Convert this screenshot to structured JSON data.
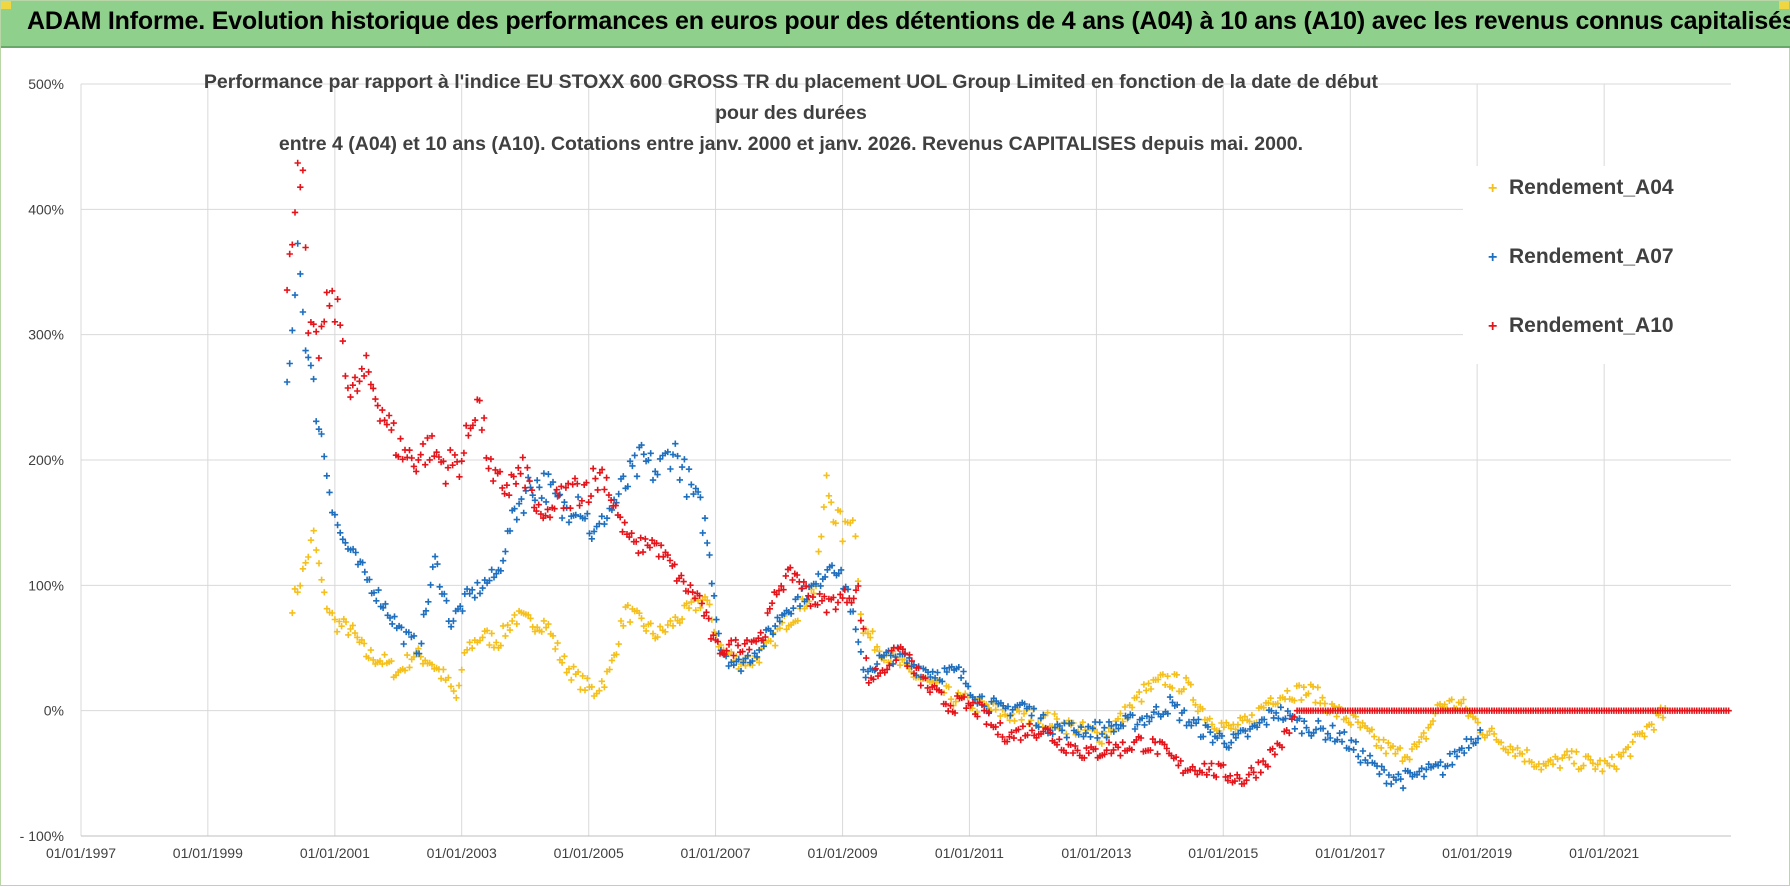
{
  "banner": {
    "title": "ADAM Informe. Evolution historique des performances en euros pour des détentions de 4 ans (A04) à 10 ans (A10) avec les revenus connus capitalisés"
  },
  "colors": {
    "banner_bg": "#8fd08c",
    "A04": "#f5c01b",
    "A07": "#1f6fbf",
    "A10": "#e5141b",
    "gridline": "#d9d9d9",
    "text": "#404040"
  },
  "chart_data": {
    "type": "scatter",
    "title_line1": "Performance par rapport à l'indice EU STOXX 600 GROSS TR  du placement UOL Group Limited en fonction de la date de début pour des durées",
    "title_line2": "entre 4 (A04) et 10 ans (A10).  Cotations entre janv. 2000 et janv. 2026. Revenus CAPITALISES depuis mai. 2000.",
    "xlabel": "",
    "ylabel": "",
    "x_axis_type": "date",
    "xlim": [
      "1997-01-01",
      "2023-01-01"
    ],
    "ylim": [
      -100,
      500
    ],
    "x_ticks": [
      "01/01/1997",
      "01/01/1999",
      "01/01/2001",
      "01/01/2003",
      "01/01/2005",
      "01/01/2007",
      "01/01/2009",
      "01/01/2011",
      "01/01/2013",
      "01/01/2015",
      "01/01/2017",
      "01/01/2019",
      "01/01/2021"
    ],
    "x_tick_dates": [
      "1997-01-01",
      "1999-01-01",
      "2001-01-01",
      "2003-01-01",
      "2005-01-01",
      "2007-01-01",
      "2009-01-01",
      "2011-01-01",
      "2013-01-01",
      "2015-01-01",
      "2017-01-01",
      "2019-01-01",
      "2021-01-01"
    ],
    "y_ticks": [
      "- 100%",
      "0%",
      "100%",
      "200%",
      "300%",
      "400%",
      "500%"
    ],
    "y_tick_values": [
      -100,
      0,
      100,
      200,
      300,
      400,
      500
    ],
    "grid": true,
    "legend_position": "top-right",
    "marker": "+",
    "series": [
      {
        "name": "Rendement_A04",
        "color": "#f5c01b",
        "points": [
          [
            "2000-05-01",
            85
          ],
          [
            "2000-07-01",
            110
          ],
          [
            "2000-09-01",
            140
          ],
          [
            "2000-11-01",
            90
          ],
          [
            "2001-01-01",
            70
          ],
          [
            "2001-04-01",
            65
          ],
          [
            "2001-07-01",
            45
          ],
          [
            "2001-10-01",
            40
          ],
          [
            "2002-01-01",
            30
          ],
          [
            "2002-04-01",
            45
          ],
          [
            "2002-07-01",
            40
          ],
          [
            "2002-10-01",
            25
          ],
          [
            "2002-12-01",
            10
          ],
          [
            "2003-02-01",
            50
          ],
          [
            "2003-05-01",
            60
          ],
          [
            "2003-08-01",
            55
          ],
          [
            "2003-11-01",
            75
          ],
          [
            "2004-02-01",
            70
          ],
          [
            "2004-05-01",
            70
          ],
          [
            "2004-08-01",
            40
          ],
          [
            "2004-11-01",
            25
          ],
          [
            "2005-02-01",
            15
          ],
          [
            "2005-05-01",
            30
          ],
          [
            "2005-08-01",
            80
          ],
          [
            "2005-11-01",
            70
          ],
          [
            "2006-02-01",
            60
          ],
          [
            "2006-05-01",
            70
          ],
          [
            "2006-08-01",
            80
          ],
          [
            "2006-11-01",
            90
          ],
          [
            "2007-02-01",
            50
          ],
          [
            "2007-05-01",
            40
          ],
          [
            "2007-08-01",
            40
          ],
          [
            "2007-11-01",
            50
          ],
          [
            "2008-02-01",
            70
          ],
          [
            "2008-05-01",
            80
          ],
          [
            "2008-08-01",
            100
          ],
          [
            "2008-10-01",
            180
          ],
          [
            "2009-01-01",
            140
          ],
          [
            "2009-03-01",
            160
          ],
          [
            "2009-05-01",
            65
          ],
          [
            "2009-08-01",
            50
          ],
          [
            "2009-11-01",
            40
          ],
          [
            "2010-02-01",
            30
          ],
          [
            "2010-06-01",
            20
          ],
          [
            "2010-10-01",
            10
          ],
          [
            "2011-02-01",
            5
          ],
          [
            "2011-06-01",
            0
          ],
          [
            "2011-10-01",
            -5
          ],
          [
            "2012-02-01",
            -5
          ],
          [
            "2012-06-01",
            -10
          ],
          [
            "2012-10-01",
            -15
          ],
          [
            "2013-02-01",
            -20
          ],
          [
            "2013-06-01",
            -5
          ],
          [
            "2013-10-01",
            15
          ],
          [
            "2014-02-01",
            25
          ],
          [
            "2014-06-01",
            20
          ],
          [
            "2014-10-01",
            -5
          ],
          [
            "2015-02-01",
            -15
          ],
          [
            "2015-06-01",
            -10
          ],
          [
            "2015-10-01",
            10
          ],
          [
            "2016-02-01",
            15
          ],
          [
            "2016-06-01",
            15
          ],
          [
            "2016-10-01",
            0
          ],
          [
            "2017-02-01",
            -10
          ],
          [
            "2017-06-01",
            -25
          ],
          [
            "2017-10-01",
            -35
          ],
          [
            "2018-02-01",
            -30
          ],
          [
            "2018-06-01",
            5
          ],
          [
            "2018-10-01",
            5
          ],
          [
            "2019-02-01",
            -15
          ],
          [
            "2019-06-01",
            -25
          ],
          [
            "2019-10-01",
            -35
          ],
          [
            "2020-02-01",
            -45
          ],
          [
            "2020-06-01",
            -38
          ],
          [
            "2020-10-01",
            -42
          ],
          [
            "2021-02-01",
            -45
          ],
          [
            "2021-06-01",
            -30
          ],
          [
            "2021-10-01",
            -10
          ],
          [
            "2022-01-01",
            0
          ]
        ]
      },
      {
        "name": "Rendement_A07",
        "color": "#1f6fbf",
        "points": [
          [
            "2000-04-01",
            250
          ],
          [
            "2000-05-01",
            300
          ],
          [
            "2000-06-01",
            380
          ],
          [
            "2000-07-01",
            320
          ],
          [
            "2000-08-01",
            280
          ],
          [
            "2000-10-01",
            230
          ],
          [
            "2000-12-01",
            180
          ],
          [
            "2001-02-01",
            140
          ],
          [
            "2001-05-01",
            120
          ],
          [
            "2001-08-01",
            100
          ],
          [
            "2001-11-01",
            80
          ],
          [
            "2002-02-01",
            60
          ],
          [
            "2002-05-01",
            50
          ],
          [
            "2002-08-01",
            120
          ],
          [
            "2002-11-01",
            70
          ],
          [
            "2003-02-01",
            90
          ],
          [
            "2003-05-01",
            100
          ],
          [
            "2003-08-01",
            110
          ],
          [
            "2003-11-01",
            160
          ],
          [
            "2004-02-01",
            180
          ],
          [
            "2004-05-01",
            180
          ],
          [
            "2004-08-01",
            160
          ],
          [
            "2004-11-01",
            170
          ],
          [
            "2005-02-01",
            140
          ],
          [
            "2005-05-01",
            160
          ],
          [
            "2005-08-01",
            180
          ],
          [
            "2005-11-01",
            200
          ],
          [
            "2006-02-01",
            190
          ],
          [
            "2006-05-01",
            210
          ],
          [
            "2006-08-01",
            180
          ],
          [
            "2006-11-01",
            150
          ],
          [
            "2007-02-01",
            50
          ],
          [
            "2007-05-01",
            35
          ],
          [
            "2007-08-01",
            45
          ],
          [
            "2007-11-01",
            60
          ],
          [
            "2008-02-01",
            80
          ],
          [
            "2008-05-01",
            90
          ],
          [
            "2008-08-01",
            100
          ],
          [
            "2008-11-01",
            120
          ],
          [
            "2009-02-01",
            95
          ],
          [
            "2009-05-01",
            30
          ],
          [
            "2009-08-01",
            40
          ],
          [
            "2009-11-01",
            45
          ],
          [
            "2010-03-01",
            35
          ],
          [
            "2010-07-01",
            30
          ],
          [
            "2010-11-01",
            30
          ],
          [
            "2011-03-01",
            10
          ],
          [
            "2011-07-01",
            0
          ],
          [
            "2011-11-01",
            5
          ],
          [
            "2012-03-01",
            -10
          ],
          [
            "2012-07-01",
            -15
          ],
          [
            "2012-11-01",
            -15
          ],
          [
            "2013-03-01",
            -15
          ],
          [
            "2013-07-01",
            -10
          ],
          [
            "2013-11-01",
            -5
          ],
          [
            "2014-03-01",
            5
          ],
          [
            "2014-07-01",
            -10
          ],
          [
            "2014-11-01",
            -20
          ],
          [
            "2015-03-01",
            -25
          ],
          [
            "2015-07-01",
            -15
          ],
          [
            "2015-11-01",
            0
          ],
          [
            "2016-03-01",
            -10
          ],
          [
            "2016-07-01",
            -15
          ],
          [
            "2016-11-01",
            -20
          ],
          [
            "2017-03-01",
            -35
          ],
          [
            "2017-07-01",
            -50
          ],
          [
            "2017-11-01",
            -55
          ],
          [
            "2018-03-01",
            -50
          ],
          [
            "2018-07-01",
            -45
          ],
          [
            "2018-11-01",
            -25
          ],
          [
            "2019-02-01",
            -15
          ]
        ]
      },
      {
        "name": "Rendement_A10",
        "color": "#e5141b",
        "points": [
          [
            "2000-04-01",
            330
          ],
          [
            "2000-05-01",
            380
          ],
          [
            "2000-06-01",
            440
          ],
          [
            "2000-07-01",
            420
          ],
          [
            "2000-08-01",
            300
          ],
          [
            "2000-10-01",
            290
          ],
          [
            "2000-12-01",
            330
          ],
          [
            "2001-02-01",
            310
          ],
          [
            "2001-04-01",
            250
          ],
          [
            "2001-07-01",
            270
          ],
          [
            "2001-10-01",
            240
          ],
          [
            "2002-01-01",
            210
          ],
          [
            "2002-04-01",
            200
          ],
          [
            "2002-07-01",
            210
          ],
          [
            "2002-10-01",
            195
          ],
          [
            "2003-01-01",
            200
          ],
          [
            "2003-04-01",
            250
          ],
          [
            "2003-07-01",
            180
          ],
          [
            "2003-10-01",
            180
          ],
          [
            "2004-01-01",
            190
          ],
          [
            "2004-04-01",
            150
          ],
          [
            "2004-07-01",
            165
          ],
          [
            "2004-10-01",
            175
          ],
          [
            "2005-01-01",
            180
          ],
          [
            "2005-04-01",
            190
          ],
          [
            "2005-07-01",
            150
          ],
          [
            "2005-10-01",
            130
          ],
          [
            "2006-01-01",
            135
          ],
          [
            "2006-04-01",
            120
          ],
          [
            "2006-07-01",
            100
          ],
          [
            "2006-10-01",
            90
          ],
          [
            "2007-01-01",
            50
          ],
          [
            "2007-04-01",
            50
          ],
          [
            "2007-07-01",
            55
          ],
          [
            "2007-10-01",
            60
          ],
          [
            "2008-01-01",
            100
          ],
          [
            "2008-04-01",
            110
          ],
          [
            "2008-07-01",
            90
          ],
          [
            "2008-10-01",
            85
          ],
          [
            "2009-01-01",
            90
          ],
          [
            "2009-04-01",
            95
          ],
          [
            "2009-06-01",
            25
          ],
          [
            "2009-09-01",
            35
          ],
          [
            "2009-12-01",
            50
          ],
          [
            "2010-03-01",
            30
          ],
          [
            "2010-06-01",
            15
          ],
          [
            "2010-09-01",
            5
          ],
          [
            "2010-12-01",
            5
          ],
          [
            "2011-03-01",
            0
          ],
          [
            "2011-06-01",
            -15
          ],
          [
            "2011-09-01",
            -20
          ],
          [
            "2011-12-01",
            -15
          ],
          [
            "2012-03-01",
            -15
          ],
          [
            "2012-06-01",
            -25
          ],
          [
            "2012-09-01",
            -30
          ],
          [
            "2012-12-01",
            -35
          ],
          [
            "2013-03-01",
            -30
          ],
          [
            "2013-06-01",
            -30
          ],
          [
            "2013-09-01",
            -25
          ],
          [
            "2014-01-01",
            -30
          ],
          [
            "2014-05-01",
            -45
          ],
          [
            "2014-09-01",
            -45
          ],
          [
            "2015-01-01",
            -50
          ],
          [
            "2015-05-01",
            -55
          ],
          [
            "2015-09-01",
            -40
          ],
          [
            "2016-01-01",
            -20
          ],
          [
            "2016-03-01",
            0
          ],
          [
            "2016-06-01",
            0
          ],
          [
            "2017-01-01",
            0
          ],
          [
            "2018-01-01",
            0
          ],
          [
            "2019-01-01",
            0
          ],
          [
            "2020-01-01",
            0
          ],
          [
            "2021-01-01",
            0
          ],
          [
            "2022-01-01",
            0
          ],
          [
            "2023-01-01",
            0
          ]
        ]
      }
    ]
  }
}
